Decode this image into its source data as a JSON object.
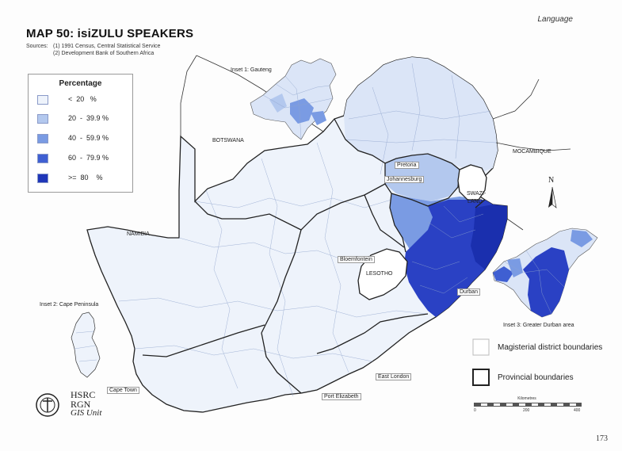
{
  "header": {
    "section": "Language",
    "title": "MAP 50: isiZULU SPEAKERS",
    "sources_label": "Sources:",
    "sources": [
      "(1) 1991 Census, Central Statistical Service",
      "(2) Development Bank of Southern Africa"
    ]
  },
  "legend": {
    "title": "Percentage",
    "classes": [
      {
        "label": "<  20   %",
        "color": "#eef3fb"
      },
      {
        "label": "20  -  39.9 %",
        "color": "#b3c8ee"
      },
      {
        "label": "40  -  59.9 %",
        "color": "#7a9be3"
      },
      {
        "label": "60  -  79.9 %",
        "color": "#3f5fd2"
      },
      {
        "label": ">=  80    %",
        "color": "#1f36b8"
      }
    ]
  },
  "labels": {
    "inset1": "Inset 1: Gauteng",
    "inset2": "Inset 2: Cape Peninsula",
    "inset3": "Inset 3: Greater Durban area",
    "botswana": "BOTSWANA",
    "namibia": "NAMIBIA",
    "mocambique": "MOCAMBIQUE",
    "swazi1": "SWAZI-",
    "swazi2": "LAND",
    "lesotho": "LESOTHO",
    "pretoria": "Pretoria",
    "johannesburg": "Johannesburg",
    "bloemfontein": "Bloemfontein",
    "durban": "Durban",
    "east_london": "East London",
    "port_elizabeth": "Port Elizabeth",
    "cape_town": "Cape Town",
    "north": "N"
  },
  "boundary_legend": {
    "magisterial": "Magisterial district boundaries",
    "provincial": "Provincial boundaries"
  },
  "scale": {
    "title": "Kilometres",
    "ticks": [
      "0",
      "200",
      "400"
    ]
  },
  "logo": {
    "line1": "HSRC",
    "line2": "RGN",
    "line3": "GIS Unit"
  },
  "page_number": "173"
}
